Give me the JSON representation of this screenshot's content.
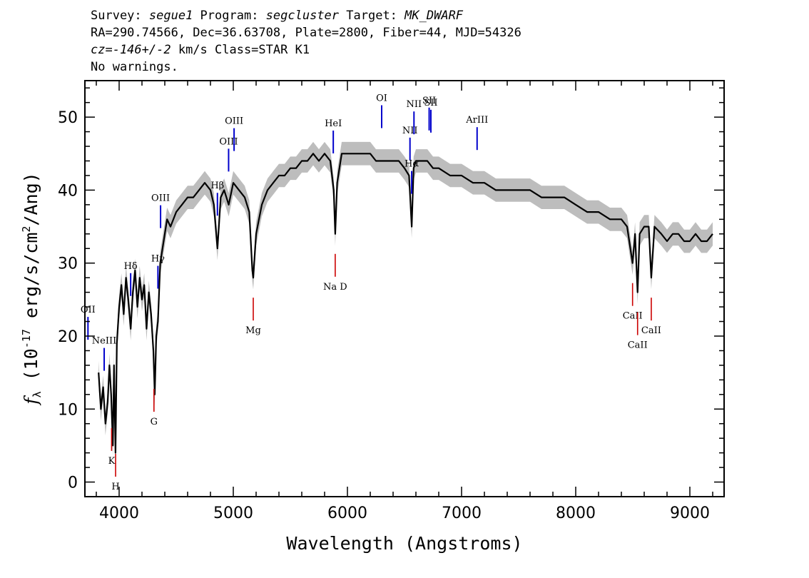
{
  "header": {
    "survey_key": "Survey: ",
    "survey_val": "segue1",
    "program_key": " Program: ",
    "program_val": "segcluster",
    "target_key": " Target: ",
    "target_val": "MK_DWARF",
    "line2": "RA=290.74566, Dec=36.63708, Plate=2800, Fiber=44, MJD=54326",
    "cz_val": "cz=-146+/-2",
    "cz_rest": " km/s Class=STAR K1",
    "line4": "No warnings."
  },
  "chart_data": {
    "type": "line",
    "xlabel": "Wavelength (Angstroms)",
    "ylabel": "f_λ (10^-17 erg/s/cm^2/Ang)",
    "xlim": [
      3700,
      9300
    ],
    "ylim": [
      -2,
      55
    ],
    "x_ticks": [
      4000,
      5000,
      6000,
      7000,
      8000,
      9000
    ],
    "y_ticks": [
      0,
      10,
      20,
      30,
      40,
      50
    ],
    "grid": false,
    "colors": {
      "spectrum": "#000000",
      "error_band": "#bdbdbd",
      "emission": "#0000cc",
      "absorption": "#cc0000"
    },
    "spectrum": {
      "x": [
        3820,
        3840,
        3860,
        3880,
        3900,
        3915,
        3930,
        3945,
        3955,
        3968,
        3980,
        4000,
        4020,
        4040,
        4060,
        4080,
        4101,
        4120,
        4140,
        4160,
        4180,
        4200,
        4220,
        4240,
        4260,
        4280,
        4300,
        4312,
        4325,
        4340,
        4360,
        4380,
        4400,
        4420,
        4450,
        4500,
        4550,
        4600,
        4650,
        4700,
        4750,
        4800,
        4830,
        4861,
        4890,
        4920,
        4960,
        5000,
        5050,
        5100,
        5140,
        5167,
        5175,
        5183,
        5200,
        5250,
        5300,
        5350,
        5400,
        5450,
        5500,
        5550,
        5600,
        5650,
        5700,
        5750,
        5800,
        5850,
        5880,
        5893,
        5910,
        5950,
        6000,
        6050,
        6100,
        6150,
        6200,
        6250,
        6300,
        6350,
        6400,
        6450,
        6500,
        6540,
        6563,
        6580,
        6600,
        6650,
        6700,
        6750,
        6800,
        6900,
        7000,
        7100,
        7200,
        7300,
        7400,
        7500,
        7600,
        7700,
        7800,
        7900,
        8000,
        8100,
        8200,
        8300,
        8400,
        8450,
        8498,
        8520,
        8542,
        8560,
        8600,
        8640,
        8662,
        8690,
        8750,
        8800,
        8850,
        8900,
        8950,
        9000,
        9050,
        9100,
        9150,
        9200
      ],
      "y": [
        15,
        10,
        13,
        8,
        11,
        16,
        12,
        5,
        16,
        4,
        19,
        24,
        27,
        23,
        28,
        25,
        21,
        26,
        29,
        24,
        28,
        25,
        27,
        21,
        26,
        23,
        18,
        12,
        20,
        22,
        30,
        32,
        34,
        36,
        35,
        37,
        38,
        39,
        39,
        40,
        41,
        40,
        38,
        32,
        39,
        40,
        38,
        41,
        40,
        39,
        37,
        29,
        28,
        30,
        34,
        38,
        40,
        41,
        42,
        42,
        43,
        43,
        44,
        44,
        45,
        44,
        45,
        44,
        40,
        34,
        41,
        45,
        45,
        45,
        45,
        45,
        45,
        44,
        44,
        44,
        44,
        44,
        43,
        42,
        35,
        43,
        44,
        44,
        44,
        43,
        43,
        42,
        42,
        41,
        41,
        40,
        40,
        40,
        40,
        39,
        39,
        39,
        38,
        37,
        37,
        36,
        36,
        35,
        30,
        34,
        26,
        34,
        35,
        35,
        28,
        35,
        34,
        33,
        34,
        34,
        33,
        33,
        34,
        33,
        33,
        34
      ]
    },
    "emission_lines": [
      {
        "label": "HeI",
        "x": 5876
      },
      {
        "label": "OI",
        "x": 6300
      },
      {
        "label": "NII",
        "x": 6548
      },
      {
        "label": "Hα",
        "x": 6563
      },
      {
        "label": "NII",
        "x": 6583
      },
      {
        "label": "SII",
        "x": 6716
      },
      {
        "label": "SII",
        "x": 6731
      },
      {
        "label": "ArIII",
        "x": 7136
      },
      {
        "label": "Hβ",
        "x": 4861
      },
      {
        "label": "OIII",
        "x": 4959
      },
      {
        "label": "OIII",
        "x": 5007
      },
      {
        "label": "Hγ",
        "x": 4340
      },
      {
        "label": "OIII",
        "x": 4363
      },
      {
        "label": "Hδ",
        "x": 4101
      },
      {
        "label": "NeIII",
        "x": 3869
      },
      {
        "label": "OII",
        "x": 3727
      }
    ],
    "absorption_lines": [
      {
        "label": "K",
        "x": 3934
      },
      {
        "label": "H",
        "x": 3969
      },
      {
        "label": "G",
        "x": 4305
      },
      {
        "label": "Mg",
        "x": 5175
      },
      {
        "label": "Na D",
        "x": 5893
      },
      {
        "label": "CaII",
        "x": 8498
      },
      {
        "label": "CaII",
        "x": 8542
      },
      {
        "label": "CaII",
        "x": 8662
      }
    ]
  }
}
